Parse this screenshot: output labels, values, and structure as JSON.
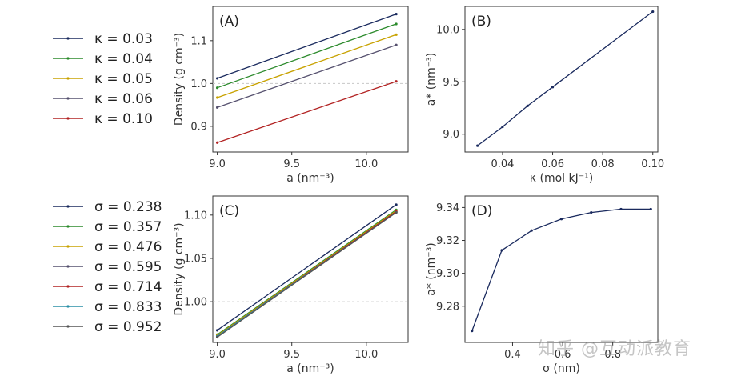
{
  "chart_data": [
    {
      "panel": "(A)",
      "type": "line",
      "xlabel": "a (nm⁻³)",
      "ylabel": "Density (g cm⁻³)",
      "xlim": [
        8.97,
        10.28
      ],
      "ylim": [
        0.84,
        1.18
      ],
      "xticks": [
        "9.0",
        "9.5",
        "10.0"
      ],
      "yticks": [
        "0.9",
        "1.0",
        "1.1"
      ],
      "reference_line": 1.0,
      "series": [
        {
          "name": "κ = 0.03",
          "color": "#1a2a5e",
          "x": [
            9.0,
            10.2
          ],
          "values": [
            1.012,
            1.162
          ]
        },
        {
          "name": "κ = 0.04",
          "color": "#2b8a2b",
          "x": [
            9.0,
            10.2
          ],
          "values": [
            0.99,
            1.139
          ]
        },
        {
          "name": "κ = 0.05",
          "color": "#c8a200",
          "x": [
            9.0,
            10.2
          ],
          "values": [
            0.967,
            1.114
          ]
        },
        {
          "name": "κ = 0.06",
          "color": "#55506e",
          "x": [
            9.0,
            10.2
          ],
          "values": [
            0.944,
            1.09
          ]
        },
        {
          "name": "κ = 0.10",
          "color": "#b22222",
          "x": [
            9.0,
            10.2
          ],
          "values": [
            0.862,
            1.005
          ]
        }
      ]
    },
    {
      "panel": "(B)",
      "type": "line",
      "xlabel": "κ (mol kJ⁻¹)",
      "ylabel": "a* (nm⁻³)",
      "xlim": [
        0.025,
        0.102
      ],
      "ylim": [
        8.83,
        10.22
      ],
      "xticks": [
        "0.04",
        "0.06",
        "0.08",
        "0.10"
      ],
      "yticks": [
        "9.0",
        "9.5",
        "10.0"
      ],
      "series": [
        {
          "name": "",
          "color": "#1a2a5e",
          "x": [
            0.03,
            0.04,
            0.05,
            0.06,
            0.1
          ],
          "values": [
            8.89,
            9.07,
            9.27,
            9.45,
            10.17
          ]
        }
      ]
    },
    {
      "panel": "(C)",
      "type": "line",
      "xlabel": "a (nm⁻³)",
      "ylabel": "Density (g cm⁻³)",
      "xlim": [
        8.97,
        10.28
      ],
      "ylim": [
        0.953,
        1.122
      ],
      "xticks": [
        "9.0",
        "9.5",
        "10.0"
      ],
      "yticks": [
        "1.00",
        "1.05",
        "1.10"
      ],
      "reference_line": 1.0,
      "series": [
        {
          "name": "σ = 0.238",
          "color": "#1a2a5e",
          "x": [
            9.0,
            10.2
          ],
          "values": [
            0.967,
            1.112
          ]
        },
        {
          "name": "σ = 0.357",
          "color": "#2b8a2b",
          "x": [
            9.0,
            10.2
          ],
          "values": [
            0.962,
            1.106
          ]
        },
        {
          "name": "σ = 0.476",
          "color": "#c8a200",
          "x": [
            9.0,
            10.2
          ],
          "values": [
            0.961,
            1.105
          ]
        },
        {
          "name": "σ = 0.595",
          "color": "#55506e",
          "x": [
            9.0,
            10.2
          ],
          "values": [
            0.96,
            1.104
          ]
        },
        {
          "name": "σ = 0.714",
          "color": "#b22222",
          "x": [
            9.0,
            10.2
          ],
          "values": [
            0.96,
            1.104
          ]
        },
        {
          "name": "σ = 0.833",
          "color": "#2a8fa6",
          "x": [
            9.0,
            10.2
          ],
          "values": [
            0.96,
            1.103
          ]
        },
        {
          "name": "σ = 0.952",
          "color": "#555555",
          "x": [
            9.0,
            10.2
          ],
          "values": [
            0.959,
            1.103
          ]
        }
      ]
    },
    {
      "panel": "(D)",
      "type": "line",
      "xlabel": "σ (nm)",
      "ylabel": "a* (nm⁻³)",
      "xlim": [
        0.21,
        0.98
      ],
      "ylim": [
        9.258,
        9.347
      ],
      "xticks": [
        "0.4",
        "0.6",
        "0.8"
      ],
      "yticks": [
        "9.28",
        "9.30",
        "9.32",
        "9.34"
      ],
      "series": [
        {
          "name": "",
          "color": "#1a2a5e",
          "x": [
            0.238,
            0.357,
            0.476,
            0.595,
            0.714,
            0.833,
            0.952
          ],
          "values": [
            9.265,
            9.314,
            9.326,
            9.333,
            9.337,
            9.339,
            9.339
          ]
        }
      ]
    }
  ],
  "watermark": "知乎 @互动派教育"
}
